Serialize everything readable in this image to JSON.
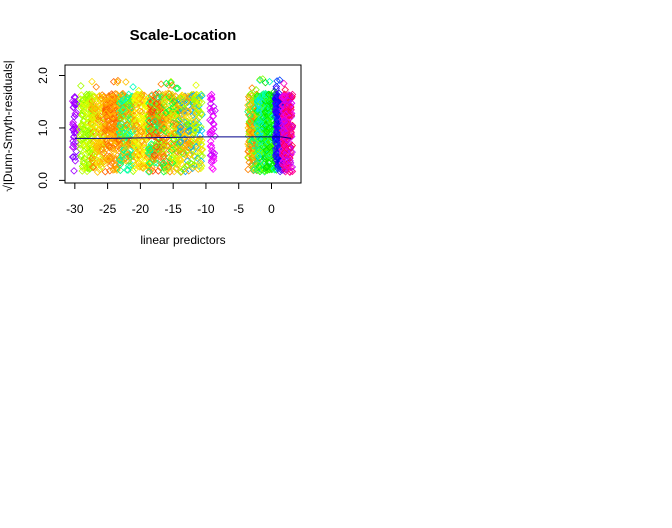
{
  "chart_data": {
    "type": "scatter",
    "title": "Scale-Location",
    "xlabel": "linear predictors",
    "ylabel": "√|Dunn-Smyth-residuals|",
    "xlim": [
      -31.5,
      4.5
    ],
    "ylim": [
      -0.05,
      2.2
    ],
    "x_ticks": [
      -30,
      -25,
      -20,
      -15,
      -10,
      -5,
      0
    ],
    "x_tick_labels": [
      "-30",
      "-25",
      "-20",
      "-15",
      "-10",
      "-5",
      "0"
    ],
    "y_ticks": [
      0.0,
      1.0,
      2.0
    ],
    "y_tick_labels": [
      "0.0",
      "1.0",
      "2.0"
    ],
    "grid": false,
    "legend": "none",
    "marker": "open-diamond",
    "clusters": [
      {
        "x_min": -30.4,
        "x_max": -29.6,
        "n": 45,
        "colors": [
          "#8000ff",
          "#a000ff",
          "#c000ff"
        ]
      },
      {
        "x_min": -29.2,
        "x_max": -27.2,
        "n": 150,
        "colors": [
          "#c8ff00",
          "#a8ff00",
          "#e0ff00",
          "#80ff00"
        ]
      },
      {
        "x_min": -27.5,
        "x_max": -25.5,
        "n": 150,
        "colors": [
          "#ffc000",
          "#ffe000",
          "#c8ff00",
          "#ff8000"
        ]
      },
      {
        "x_min": -25.5,
        "x_max": -23.0,
        "n": 220,
        "colors": [
          "#ff8000",
          "#ffa000",
          "#ff6000",
          "#ffc000"
        ]
      },
      {
        "x_min": -23.2,
        "x_max": -21.0,
        "n": 200,
        "colors": [
          "#00ff80",
          "#00ffc0",
          "#80ff00",
          "#ffc000",
          "#ff8000"
        ]
      },
      {
        "x_min": -21.0,
        "x_max": -18.7,
        "n": 180,
        "colors": [
          "#ffff00",
          "#ffe000",
          "#e0ff00",
          "#ffa000"
        ]
      },
      {
        "x_min": -18.8,
        "x_max": -16.5,
        "n": 200,
        "colors": [
          "#ff8000",
          "#ffa000",
          "#00ff80",
          "#80ff00",
          "#ff4000"
        ]
      },
      {
        "x_min": -16.5,
        "x_max": -14.0,
        "n": 200,
        "colors": [
          "#c8ff00",
          "#ffd000",
          "#00ff40",
          "#ff8000"
        ]
      },
      {
        "x_min": -14.0,
        "x_max": -11.8,
        "n": 170,
        "colors": [
          "#ffe000",
          "#00a0ff",
          "#80ff00",
          "#ffa000"
        ]
      },
      {
        "x_min": -11.8,
        "x_max": -10.5,
        "n": 90,
        "colors": [
          "#e0ff00",
          "#a0ff00",
          "#00c0ff",
          "#ffc000"
        ]
      },
      {
        "x_min": -9.4,
        "x_max": -8.6,
        "n": 40,
        "colors": [
          "#ff00ff",
          "#e000ff",
          "#c000ff"
        ]
      },
      {
        "x_min": -3.6,
        "x_max": -2.0,
        "n": 180,
        "colors": [
          "#ffc000",
          "#ff8000",
          "#80ff00",
          "#00ff80"
        ]
      },
      {
        "x_min": -2.2,
        "x_max": -0.6,
        "n": 220,
        "colors": [
          "#00ff00",
          "#00e0ff",
          "#00ff80",
          "#80ff00"
        ]
      },
      {
        "x_min": -1.0,
        "x_max": 0.8,
        "n": 220,
        "colors": [
          "#00ff00",
          "#00ffc0",
          "#00e000",
          "#40ff00"
        ]
      },
      {
        "x_min": 0.6,
        "x_max": 1.8,
        "n": 220,
        "colors": [
          "#0000ff",
          "#2000ff",
          "#4000ff",
          "#0040ff"
        ]
      },
      {
        "x_min": 1.6,
        "x_max": 3.2,
        "n": 240,
        "colors": [
          "#ff0080",
          "#ff00c0",
          "#ff0040",
          "#e000ff",
          "#c000ff"
        ]
      }
    ],
    "smooth_line": {
      "x": [
        -30,
        -25,
        -20,
        -15,
        -10,
        -5,
        0,
        1.5,
        3
      ],
      "y": [
        0.8,
        0.8,
        0.81,
        0.82,
        0.83,
        0.83,
        0.83,
        0.83,
        0.8
      ],
      "color": "#00008b"
    }
  }
}
